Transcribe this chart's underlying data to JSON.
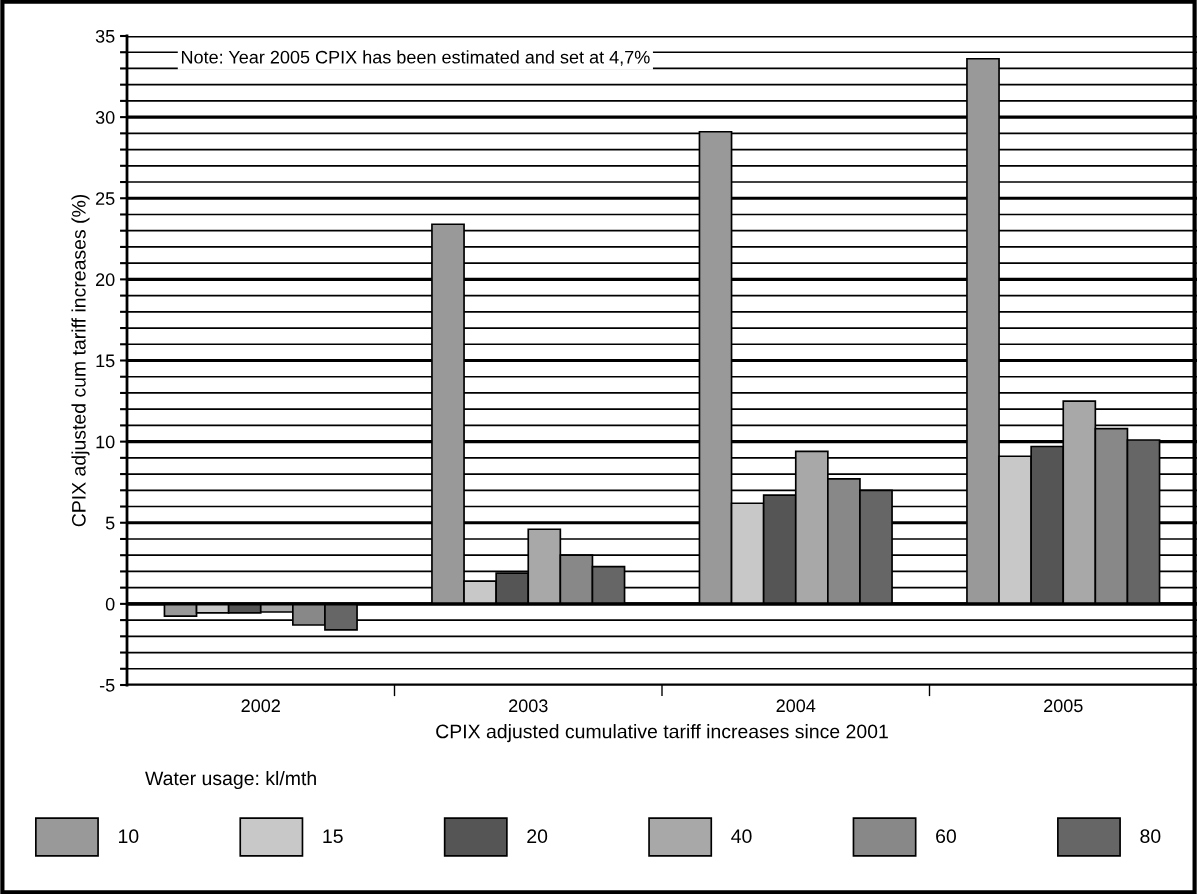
{
  "chart_data": {
    "type": "bar",
    "xlabel": "CPIX adjusted cumulative tariff increases since 2001",
    "ylabel": "CPIX adjusted cum tariff increases (%)",
    "legend_title": "Water usage: kl/mth",
    "annotations": [
      "Note: Year 2005 CPIX has been estimated and set at 4,7%"
    ],
    "categories": [
      "2002",
      "2003",
      "2004",
      "2005"
    ],
    "series": [
      {
        "name": "10",
        "color": "#999999",
        "values": [
          -0.75,
          23.4,
          29.1,
          33.6
        ]
      },
      {
        "name": "15",
        "color": "#c8c8c8",
        "values": [
          -0.55,
          1.4,
          6.2,
          9.1
        ]
      },
      {
        "name": "20",
        "color": "#555555",
        "values": [
          -0.55,
          1.9,
          6.7,
          9.7
        ]
      },
      {
        "name": "40",
        "color": "#a8a8a8",
        "values": [
          -0.5,
          4.6,
          9.4,
          12.5
        ]
      },
      {
        "name": "60",
        "color": "#888888",
        "values": [
          -1.3,
          3.0,
          7.7,
          10.8
        ]
      },
      {
        "name": "80",
        "color": "#666666",
        "values": [
          -1.6,
          2.3,
          7.0,
          10.1
        ]
      }
    ],
    "ylim": [
      -5,
      35
    ],
    "yticks": [
      -5,
      {
        "value": -4,
        "label": null
      },
      {
        "value": -3,
        "label": null
      },
      {
        "value": -2,
        "label": null
      },
      {
        "value": -1,
        "label": null
      },
      0,
      {
        "value": 1,
        "label": null
      },
      {
        "value": 2,
        "label": null
      },
      {
        "value": 3,
        "label": null
      },
      {
        "value": 4,
        "label": null
      },
      5,
      {
        "value": 6,
        "label": null
      },
      {
        "value": 7,
        "label": null
      },
      {
        "value": 8,
        "label": null
      },
      {
        "value": 9,
        "label": null
      },
      10,
      {
        "value": 11,
        "label": null
      },
      {
        "value": 12,
        "label": null
      },
      {
        "value": 13,
        "label": null
      },
      {
        "value": 14,
        "label": null
      },
      15,
      {
        "value": 16,
        "label": null
      },
      {
        "value": 17,
        "label": null
      },
      {
        "value": 18,
        "label": null
      },
      {
        "value": 19,
        "label": null
      },
      20,
      {
        "value": 21,
        "label": null
      },
      {
        "value": 22,
        "label": null
      },
      {
        "value": 23,
        "label": null
      },
      {
        "value": 24,
        "label": null
      },
      25,
      {
        "value": 26,
        "label": null
      },
      {
        "value": 27,
        "label": null
      },
      {
        "value": 28,
        "label": null
      },
      {
        "value": 29,
        "label": null
      },
      30,
      {
        "value": 31,
        "label": null
      },
      {
        "value": 32,
        "label": null
      },
      {
        "value": 33,
        "label": null
      },
      {
        "value": 34,
        "label": null
      },
      35
    ],
    "grid": "y",
    "legend": "bottom"
  }
}
